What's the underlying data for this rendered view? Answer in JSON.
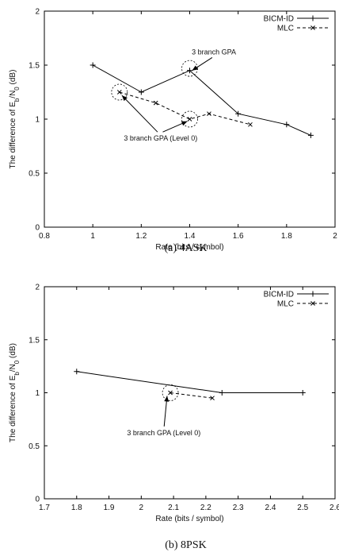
{
  "chart_data": [
    {
      "type": "line",
      "caption": "(a) 4ASK",
      "xlabel": "Rate (bits / symbol)",
      "ylabel_parts": [
        "The difference of E",
        "b",
        "/N",
        "0",
        " (dB)"
      ],
      "xlim": [
        0.8,
        2
      ],
      "ylim": [
        0,
        2
      ],
      "xticks": [
        "0.8",
        "1",
        "1.2",
        "1.4",
        "1.6",
        "1.8",
        "2"
      ],
      "yticks": [
        "0",
        "0.5",
        "1",
        "1.5",
        "2"
      ],
      "legend_position": "top-right",
      "series": [
        {
          "name": "BICM-ID",
          "style": "solid",
          "marker": "plus",
          "x": [
            1.0,
            1.2,
            1.4,
            1.6,
            1.8,
            1.9
          ],
          "y": [
            1.5,
            1.25,
            1.45,
            1.05,
            0.95,
            0.85
          ]
        },
        {
          "name": "MLC",
          "style": "dashed",
          "marker": "cross",
          "x": [
            1.11,
            1.26,
            1.4,
            1.48,
            1.65
          ],
          "y": [
            1.25,
            1.15,
            1.0,
            1.05,
            0.95
          ]
        }
      ],
      "annotations": [
        {
          "text": "3 branch GPA",
          "circles": [
            [
              1.4,
              1.47
            ]
          ],
          "label_at": [
            1.5,
            1.6
          ],
          "arrow_to": [
            [
              1.41,
              1.45
            ]
          ]
        },
        {
          "text": "3 branch GPA (Level 0)",
          "circles": [
            [
              1.11,
              1.25
            ],
            [
              1.4,
              1.0
            ]
          ],
          "label_at": [
            1.28,
            0.8
          ],
          "arrow_to": [
            [
              1.12,
              1.22
            ],
            [
              1.39,
              0.98
            ]
          ]
        }
      ]
    },
    {
      "type": "line",
      "caption": "(b) 8PSK",
      "xlabel": "Rate (bits / symbol)",
      "ylabel_parts": [
        "The difference of E",
        "b",
        "/N",
        "0",
        " (dB)"
      ],
      "xlim": [
        1.7,
        2.6
      ],
      "ylim": [
        0,
        2
      ],
      "xticks": [
        "1.7",
        "1.8",
        "1.9",
        "2",
        "2.1",
        "2.2",
        "2.3",
        "2.4",
        "2.5",
        "2.6"
      ],
      "yticks": [
        "0",
        "0.5",
        "1",
        "1.5",
        "2"
      ],
      "legend_position": "top-right",
      "series": [
        {
          "name": "BICM-ID",
          "style": "solid",
          "marker": "plus",
          "x": [
            1.8,
            2.25,
            2.5
          ],
          "y": [
            1.2,
            1.0,
            1.0
          ]
        },
        {
          "name": "MLC",
          "style": "dashed",
          "marker": "cross",
          "x": [
            2.09,
            2.22
          ],
          "y": [
            1.0,
            0.95
          ]
        }
      ],
      "annotations": [
        {
          "text": "3 branch GPA (Level 0)",
          "circles": [
            [
              2.09,
              1.0
            ]
          ],
          "label_at": [
            2.07,
            0.6
          ],
          "arrow_to": [
            [
              2.08,
              0.97
            ]
          ]
        }
      ]
    }
  ]
}
